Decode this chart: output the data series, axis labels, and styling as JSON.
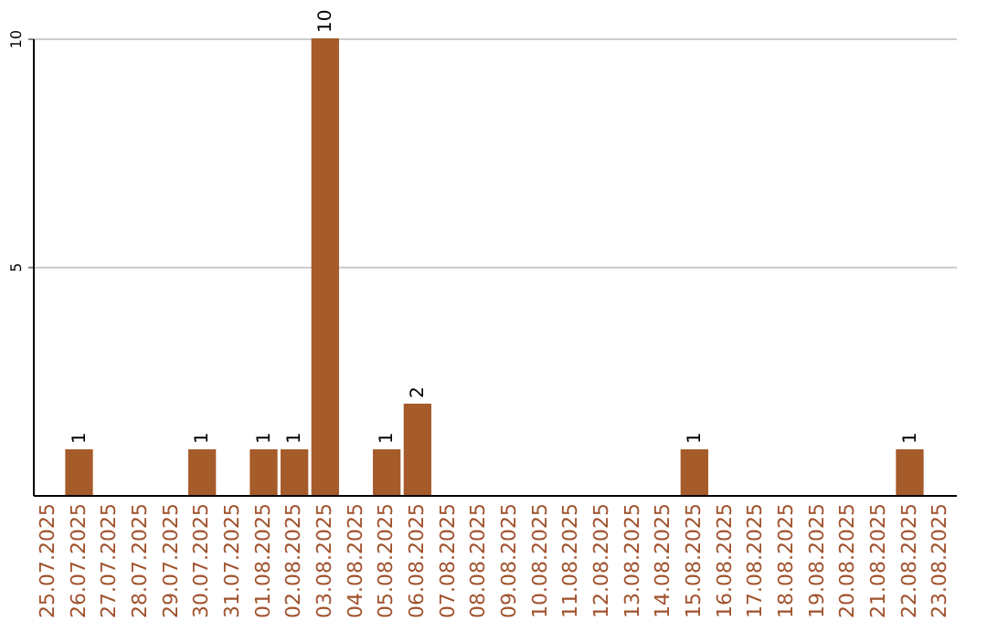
{
  "chart_data": {
    "type": "bar",
    "categories": [
      "25.07.2025",
      "26.07.2025",
      "27.07.2025",
      "28.07.2025",
      "29.07.2025",
      "30.07.2025",
      "31.07.2025",
      "01.08.2025",
      "02.08.2025",
      "03.08.2025",
      "04.08.2025",
      "05.08.2025",
      "06.08.2025",
      "07.08.2025",
      "08.08.2025",
      "09.08.2025",
      "10.08.2025",
      "11.08.2025",
      "12.08.2025",
      "13.08.2025",
      "14.08.2025",
      "15.08.2025",
      "16.08.2025",
      "17.08.2025",
      "18.08.2025",
      "19.08.2025",
      "20.08.2025",
      "21.08.2025",
      "22.08.2025",
      "23.08.2025"
    ],
    "values": [
      0,
      1,
      0,
      0,
      0,
      1,
      0,
      1,
      1,
      10,
      0,
      1,
      2,
      0,
      0,
      0,
      0,
      0,
      0,
      0,
      0,
      1,
      0,
      0,
      0,
      0,
      0,
      0,
      1,
      0
    ],
    "value_labels": [
      null,
      "1",
      null,
      null,
      null,
      "1",
      null,
      "1",
      "1",
      "10",
      null,
      "1",
      "2",
      null,
      null,
      null,
      null,
      null,
      null,
      null,
      null,
      "1",
      null,
      null,
      null,
      null,
      null,
      null,
      "1",
      null
    ],
    "color": "#a65b2a",
    "ylim": [
      0,
      10
    ],
    "yticks": [
      5,
      10
    ],
    "grid": "y"
  }
}
